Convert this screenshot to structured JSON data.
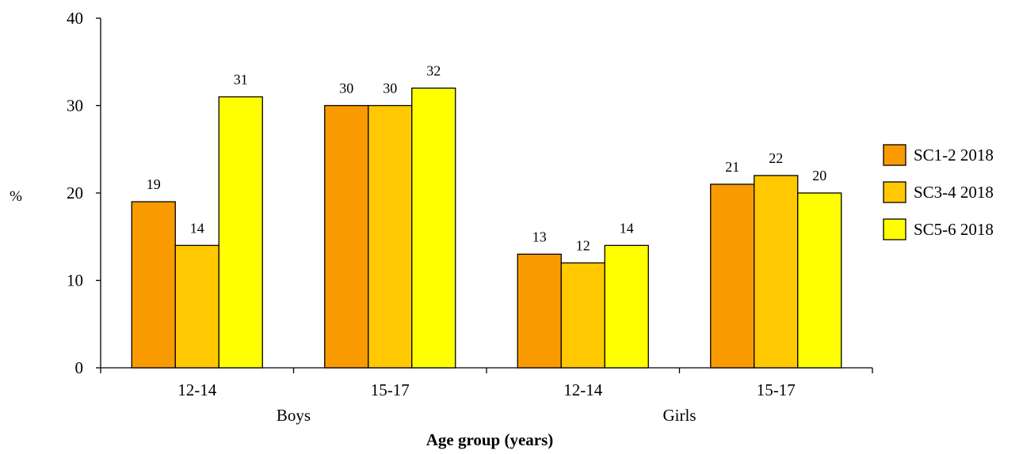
{
  "chart_data": {
    "type": "bar",
    "groups": [
      {
        "label": "Boys",
        "categories": [
          "12-14",
          "15-17"
        ]
      },
      {
        "label": "Girls",
        "categories": [
          "12-14",
          "15-17"
        ]
      }
    ],
    "categories": [
      "12-14",
      "15-17",
      "12-14",
      "15-17"
    ],
    "series": [
      {
        "name": "SC1-2 2018",
        "color": "#F99B00",
        "values": [
          19,
          30,
          13,
          21
        ]
      },
      {
        "name": "SC3-4 2018",
        "color": "#FFC800",
        "values": [
          14,
          30,
          12,
          22
        ]
      },
      {
        "name": "SC5-6 2018",
        "color": "#FFFF00",
        "values": [
          31,
          32,
          14,
          20
        ]
      }
    ],
    "xlabel": "Age group (years)",
    "ylabel": "%",
    "ylim": [
      0,
      40
    ],
    "yticks": [
      0,
      10,
      20,
      30,
      40
    ],
    "grid": false,
    "legend_position": "right"
  }
}
